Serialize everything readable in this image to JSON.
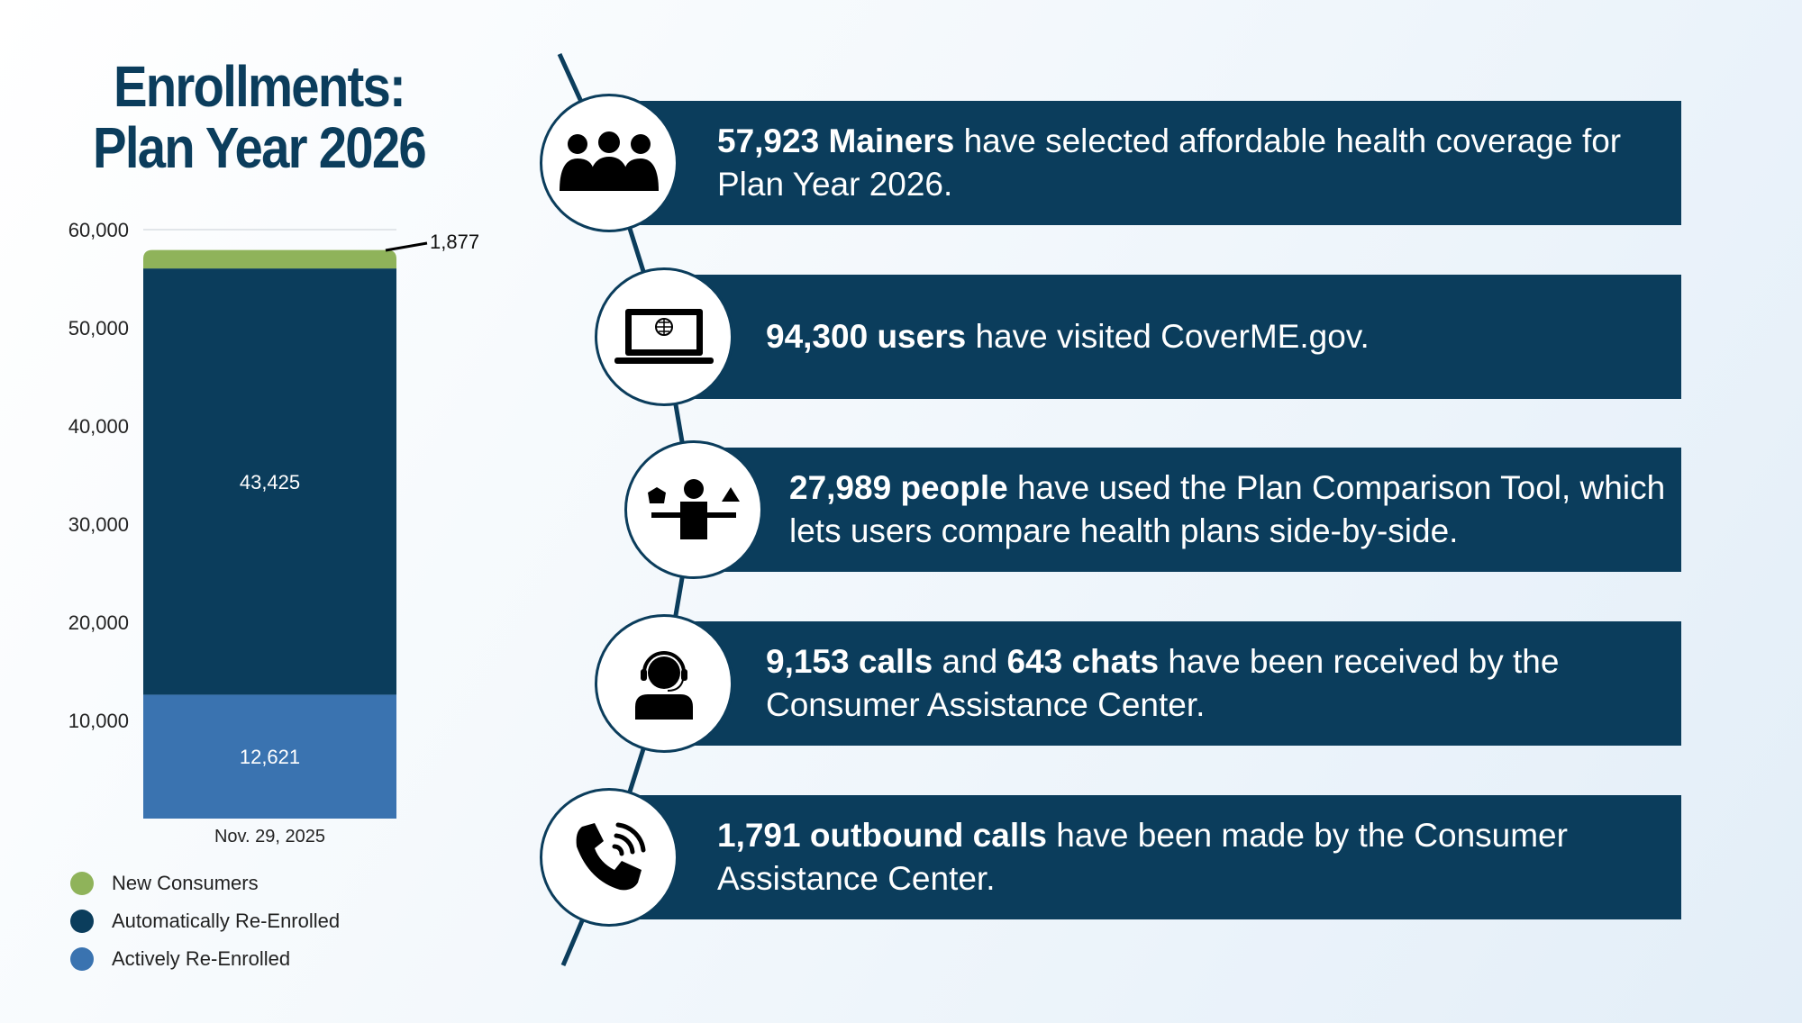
{
  "title": {
    "line1": "Enrollments:",
    "line2": "Plan Year 2026"
  },
  "chart_data": {
    "type": "bar",
    "stacked": true,
    "categories": [
      "Nov. 29, 2025"
    ],
    "ylim": [
      0,
      60000
    ],
    "yticks": [
      "10,000",
      "20,000",
      "30,000",
      "40,000",
      "50,000",
      "60,000"
    ],
    "series": [
      {
        "name": "Actively Re-Enrolled",
        "values": [
          12621
        ],
        "label": "12,621",
        "color": "#3a73b0"
      },
      {
        "name": "Automatically Re-Enrolled",
        "values": [
          43425
        ],
        "label": "43,425",
        "color": "#0b3d5c"
      },
      {
        "name": "New Consumers",
        "values": [
          1877
        ],
        "label": "1,877",
        "color": "#8fb35a"
      }
    ],
    "legend": "bottom-left",
    "grid": false
  },
  "legend": [
    {
      "label": "New Consumers",
      "color": "#8fb35a"
    },
    {
      "label": "Automatically Re-Enrolled",
      "color": "#0b3d5c"
    },
    {
      "label": "Actively Re-Enrolled",
      "color": "#3a73b0"
    }
  ],
  "stats": [
    {
      "icon": "people-group-icon",
      "bold": "57,923 Mainers",
      "text": " have selected affordable health coverage for Plan Year 2026."
    },
    {
      "icon": "laptop-globe-icon",
      "bold": "94,300 users",
      "text": " have visited CoverME.gov."
    },
    {
      "icon": "person-comparing-icon",
      "bold": "27,989 people",
      "text": " have used the Plan Comparison Tool, which lets users compare health plans side-by-side."
    },
    {
      "icon": "headset-agent-icon",
      "bold": "9,153 calls",
      "text": " and ",
      "bold2": "643 chats",
      "text2": " have been received by the Consumer Assistance Center."
    },
    {
      "icon": "phone-call-icon",
      "bold": "1,791 outbound calls",
      "text": " have been made by the Consumer Assistance Center."
    }
  ],
  "colors": {
    "navy": "#0b3d5c",
    "green": "#8fb35a",
    "blue": "#3a73b0"
  }
}
